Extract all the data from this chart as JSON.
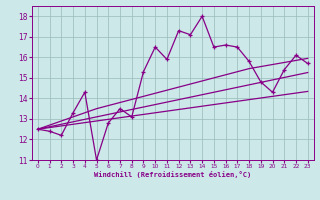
{
  "xlabel": "Windchill (Refroidissement éolien,°C)",
  "bg_color": "#cce8e8",
  "line_color": "#880088",
  "grid_color": "#99bbbb",
  "x_data": [
    0,
    1,
    2,
    3,
    4,
    5,
    6,
    7,
    8,
    9,
    10,
    11,
    12,
    13,
    14,
    15,
    16,
    17,
    18,
    19,
    20,
    21,
    22,
    23
  ],
  "y_main": [
    12.5,
    12.4,
    12.2,
    13.3,
    14.3,
    11.0,
    12.8,
    13.5,
    13.1,
    15.3,
    16.5,
    15.9,
    17.3,
    17.1,
    18.0,
    16.5,
    16.6,
    16.5,
    15.8,
    14.8,
    14.3,
    15.4,
    16.1,
    15.7
  ],
  "y_line1": [
    12.5,
    12.58,
    12.66,
    12.74,
    12.82,
    12.9,
    12.98,
    13.06,
    13.14,
    13.22,
    13.3,
    13.38,
    13.46,
    13.54,
    13.62,
    13.7,
    13.78,
    13.86,
    13.94,
    14.02,
    14.1,
    14.18,
    14.26,
    14.34
  ],
  "y_line2": [
    12.5,
    12.62,
    12.74,
    12.86,
    12.98,
    13.1,
    13.22,
    13.34,
    13.46,
    13.58,
    13.7,
    13.82,
    13.94,
    14.06,
    14.18,
    14.3,
    14.42,
    14.54,
    14.66,
    14.78,
    14.9,
    15.02,
    15.14,
    15.26
  ],
  "y_line3": [
    12.5,
    12.7,
    12.9,
    13.1,
    13.3,
    13.5,
    13.65,
    13.8,
    13.95,
    14.1,
    14.25,
    14.4,
    14.55,
    14.7,
    14.85,
    15.0,
    15.15,
    15.3,
    15.45,
    15.55,
    15.65,
    15.75,
    15.85,
    15.95
  ],
  "xlim": [
    -0.5,
    23.5
  ],
  "ylim": [
    11,
    18.5
  ],
  "yticks": [
    11,
    12,
    13,
    14,
    15,
    16,
    17,
    18
  ],
  "xticks": [
    0,
    1,
    2,
    3,
    4,
    5,
    6,
    7,
    8,
    9,
    10,
    11,
    12,
    13,
    14,
    15,
    16,
    17,
    18,
    19,
    20,
    21,
    22,
    23
  ]
}
